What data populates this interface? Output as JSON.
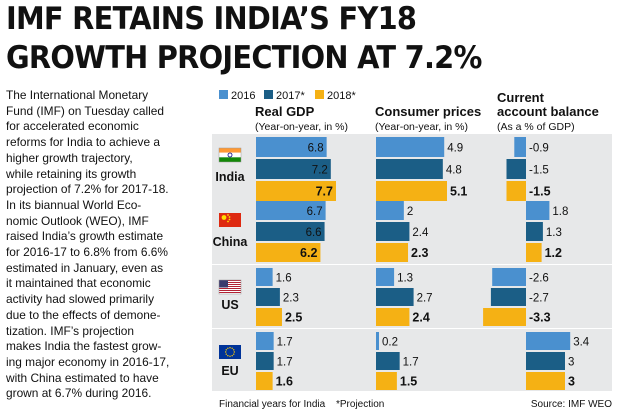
{
  "headline": {
    "line1": "IMF RETAINS INDIA’S FY18",
    "line2": "GROWTH PROJECTION AT 7.2%"
  },
  "article": {
    "lines": [
      "The International Monetary",
      "Fund (IMF) on Tuesday called",
      "for accelerated economic",
      "reforms for India to achieve a",
      "higher growth trajectory,",
      "while retaining its growth",
      "projection of 7.2% for 2017-18.",
      "In its biannual World Eco-",
      "nomic Outlook (WEO), IMF",
      "raised India’s growth estimate",
      "for 2016-17 to 6.8% from 6.6%",
      "estimated in January, even as",
      "it maintained that economic",
      "activity had slowed primarily",
      "due to the effects of demone-",
      "tization. IMF’s projection",
      "makes India the fastest grow-",
      "ing major economy in 2016-17,",
      "with China estimated to have",
      "grown at 6.7% during 2016."
    ]
  },
  "colors": {
    "y2016": "#4a90cf",
    "y2017": "#1b5e86",
    "y2018": "#f5b114",
    "panel": "#e7e8e9",
    "text": "#111111"
  },
  "chart_data": {
    "type": "bar",
    "orientation": "horizontal",
    "legend": [
      "2016",
      "2017*",
      "2018*"
    ],
    "legend_position": "top",
    "countries": [
      {
        "name": "India",
        "flag": "india-flag-icon"
      },
      {
        "name": "China",
        "flag": "china-flag-icon"
      },
      {
        "name": "US",
        "flag": "us-flag-icon"
      },
      {
        "name": "EU",
        "flag": "eu-flag-icon"
      }
    ],
    "panels": [
      {
        "title": "Real GDP",
        "subtitle": "(Year-on-year, in %)",
        "values": [
          [
            6.8,
            7.2,
            7.7
          ],
          [
            6.7,
            6.6,
            6.2
          ],
          [
            1.6,
            2.3,
            2.5
          ],
          [
            1.7,
            1.7,
            1.6
          ]
        ],
        "labels": [
          [
            "6.8",
            "7.2",
            "7.7"
          ],
          [
            "6.7",
            "6.6",
            "6.2"
          ],
          [
            "1.6",
            "2.3",
            "2.5"
          ],
          [
            "1.7",
            "1.7",
            "1.6"
          ]
        ]
      },
      {
        "title": "Consumer prices",
        "subtitle": "(Year-on-year, in %)",
        "values": [
          [
            4.9,
            4.8,
            5.1
          ],
          [
            2,
            2.4,
            2.3
          ],
          [
            1.3,
            2.7,
            2.4
          ],
          [
            0.2,
            1.7,
            1.5
          ]
        ],
        "labels": [
          [
            "4.9",
            "4.8",
            "5.1"
          ],
          [
            "2",
            "2.4",
            "2.3"
          ],
          [
            "1.3",
            "2.7",
            "2.4"
          ],
          [
            "0.2",
            "1.7",
            "1.5"
          ]
        ]
      },
      {
        "title": "Current",
        "title2": "account balance",
        "subtitle": "(As a % of GDP)",
        "values": [
          [
            -0.9,
            -1.5,
            -1.5
          ],
          [
            1.8,
            1.3,
            1.2
          ],
          [
            -2.6,
            -2.7,
            -3.3
          ],
          [
            3.4,
            3,
            3
          ]
        ],
        "labels": [
          [
            "-0.9",
            "-1.5",
            "-1.5"
          ],
          [
            "1.8",
            "1.3",
            "1.2"
          ],
          [
            "-2.6",
            "-2.7",
            "-3.3"
          ],
          [
            "3.4",
            "3",
            "3"
          ]
        ]
      }
    ],
    "footnotes": {
      "left": "Financial years for India",
      "middle": "*Projection",
      "right": "Source: IMF WEO"
    }
  }
}
